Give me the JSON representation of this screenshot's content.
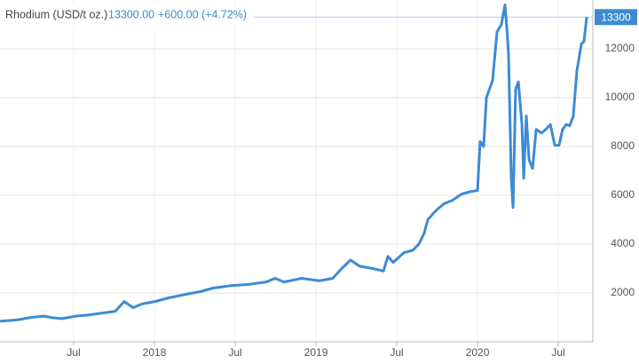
{
  "chart_data": {
    "type": "line",
    "title": "Rhodium (USD/t oz.)",
    "last_price": "13300.00",
    "change": "+600.00 (+4.72%)",
    "color": "#3d8bd4",
    "grid": true,
    "xlim": [
      2017.044,
      2020.714
    ],
    "ylim": [
      0,
      14000
    ],
    "xticks": [
      {
        "value": 2017.5,
        "label": "Jul"
      },
      {
        "value": 2018,
        "label": "2018"
      },
      {
        "value": 2018.5,
        "label": "Jul"
      },
      {
        "value": 2019,
        "label": "2019"
      },
      {
        "value": 2019.5,
        "label": "Jul"
      },
      {
        "value": 2020,
        "label": "2020"
      },
      {
        "value": 2020.5,
        "label": "Jul"
      }
    ],
    "yticks": [
      2000,
      4000,
      6000,
      8000,
      10000,
      12000
    ],
    "x": [
      2017.044,
      2017.154,
      2017.236,
      2017.319,
      2017.374,
      2017.429,
      2017.511,
      2017.593,
      2017.648,
      2017.703,
      2017.758,
      2017.813,
      2017.868,
      2017.923,
      2018.005,
      2018.088,
      2018.198,
      2018.28,
      2018.363,
      2018.473,
      2018.582,
      2018.692,
      2018.747,
      2018.802,
      2018.912,
      2019.022,
      2019.104,
      2019.159,
      2019.214,
      2019.269,
      2019.352,
      2019.418,
      2019.445,
      2019.478,
      2019.544,
      2019.599,
      2019.637,
      2019.67,
      2019.692,
      2019.725,
      2019.747,
      2019.791,
      2019.846,
      2019.901,
      2019.956,
      2020.0,
      2020.016,
      2020.038,
      2020.055,
      2020.093,
      2020.121,
      2020.148,
      2020.17,
      2020.181,
      2020.192,
      2020.209,
      2020.22,
      2020.236,
      2020.253,
      2020.275,
      2020.286,
      2020.302,
      2020.319,
      2020.341,
      2020.363,
      2020.396,
      2020.423,
      2020.451,
      2020.478,
      2020.505,
      2020.527,
      2020.549,
      2020.571,
      2020.593,
      2020.615,
      2020.643,
      2020.659,
      2020.676
    ],
    "values": [
      840,
      900,
      1000,
      1050,
      980,
      950,
      1050,
      1100,
      1150,
      1200,
      1250,
      1650,
      1400,
      1550,
      1650,
      1800,
      1950,
      2050,
      2200,
      2300,
      2350,
      2450,
      2600,
      2450,
      2600,
      2500,
      2600,
      3000,
      3350,
      3100,
      3000,
      2900,
      3500,
      3250,
      3650,
      3750,
      4000,
      4450,
      5000,
      5250,
      5400,
      5650,
      5800,
      6050,
      6150,
      6200,
      8200,
      8000,
      10000,
      10700,
      12700,
      13000,
      13800,
      12900,
      11800,
      6700,
      5500,
      10350,
      10650,
      8900,
      6700,
      9250,
      7450,
      7100,
      8700,
      8550,
      8700,
      8900,
      8050,
      8050,
      8700,
      8900,
      8850,
      9250,
      11100,
      12200,
      12300,
      13300
    ]
  }
}
